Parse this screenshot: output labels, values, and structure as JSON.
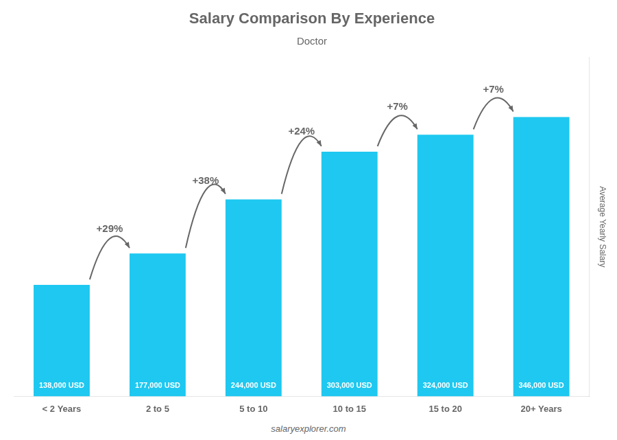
{
  "chart_data": {
    "type": "bar",
    "title": "Salary Comparison By Experience",
    "subtitle": "Doctor",
    "ylabel": "Average Yearly Salary",
    "source": "salaryexplorer.com",
    "categories": [
      "< 2 Years",
      "2 to 5",
      "5 to 10",
      "10 to 15",
      "15 to 20",
      "20+ Years"
    ],
    "values": [
      138000,
      177000,
      244000,
      303000,
      324000,
      346000
    ],
    "value_labels": [
      "138,000 USD",
      "177,000 USD",
      "244,000 USD",
      "303,000 USD",
      "324,000 USD",
      "346,000 USD"
    ],
    "data_labels": true,
    "annotations": [
      "+29%",
      "+38%",
      "+24%",
      "+7%",
      "+7%"
    ],
    "color": "#1EC8F0",
    "ylim": [
      0,
      420000
    ],
    "tick_labels": "x",
    "grid": false
  }
}
